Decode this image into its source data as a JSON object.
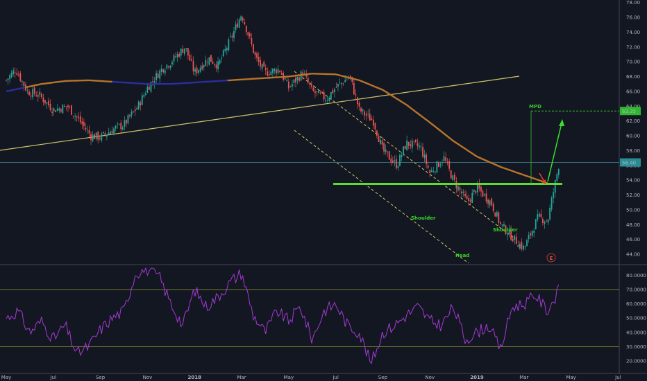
{
  "chart_data": [
    {
      "type": "candlestick",
      "ylim": [
        43,
        78
      ],
      "y_ticks": [
        "44.00",
        "46.00",
        "48.00",
        "50.00",
        "52.00",
        "54.00",
        "56.00",
        "58.00",
        "60.00",
        "62.00",
        "64.00",
        "66.00",
        "68.00",
        "70.00",
        "72.00",
        "74.00",
        "76.00",
        "78.00"
      ],
      "x_ticks": [
        "May",
        "Jul",
        "Sep",
        "Nov",
        "2018",
        "Mar",
        "May",
        "Jul",
        "Sep",
        "Nov",
        "2019",
        "Mar",
        "May",
        "Jul"
      ],
      "x_bold_ticks": [
        "2018",
        "2019"
      ],
      "series": [
        {
          "kind": "close_anchors",
          "t": [
            0,
            0.4,
            0.9,
            1.4,
            2,
            2.6,
            3,
            3.6,
            4,
            4.6,
            5,
            5.6,
            6,
            6.6,
            7,
            7.6,
            8,
            8.6,
            9,
            9.6,
            10,
            10.6,
            11,
            11.6,
            12,
            12.6,
            13,
            13.6,
            14,
            14.6,
            15,
            15.6,
            16,
            16.6,
            17,
            17.6,
            18,
            18.6,
            19,
            19.6,
            20,
            20.6,
            21,
            21.6,
            22,
            22.6,
            23,
            23.5
          ],
          "y": [
            67.5,
            69,
            66,
            65.5,
            63.5,
            64,
            62.5,
            60,
            59.8,
            61,
            61.5,
            64,
            66.5,
            69,
            70,
            72,
            68.5,
            70.5,
            69.5,
            73.5,
            76.5,
            70.5,
            68.5,
            69,
            66.5,
            68.5,
            66,
            65,
            66.5,
            68,
            63.5,
            62,
            58,
            56,
            59,
            58.5,
            55,
            57,
            54,
            51,
            53,
            51,
            48,
            46,
            44.8,
            49,
            48.5,
            56.4
          ]
        },
        {
          "kind": "moving_average",
          "t": [
            0,
            1.5,
            2.5,
            3.5,
            4.5,
            6,
            7,
            8,
            9,
            10,
            11,
            12,
            13,
            14,
            15,
            16,
            17,
            18,
            19,
            20,
            21,
            22,
            23
          ],
          "y": [
            66,
            67,
            67.4,
            67.5,
            67.3,
            67,
            67,
            67.2,
            67.4,
            67.6,
            67.8,
            68,
            68.4,
            68.3,
            67.5,
            66.2,
            64.2,
            61.8,
            59.3,
            57.2,
            55.8,
            54.7,
            53.6
          ]
        }
      ],
      "annotations": {
        "last_price": "56.40",
        "target_price": "63.35",
        "target_label": "MPD",
        "labels": [
          "Shoulder",
          "Head",
          "Shoulder"
        ],
        "event_marker": "E"
      },
      "levels": {
        "neckline": 53.5,
        "target": 63.35,
        "last": 56.4
      }
    },
    {
      "type": "line",
      "ylim": [
        15,
        86
      ],
      "y_ticks": [
        "20.0000",
        "30.0000",
        "40.0000",
        "50.0000",
        "60.0000",
        "70.0000",
        "80.0000"
      ],
      "bands": [
        30,
        70
      ],
      "series": [
        {
          "kind": "rsi",
          "t": [
            0,
            0.5,
            1,
            1.5,
            2,
            2.5,
            3,
            3.5,
            4,
            4.5,
            5,
            5.5,
            6,
            6.5,
            7,
            7.5,
            8,
            8.5,
            9,
            9.5,
            10,
            10.5,
            11,
            11.5,
            12,
            12.5,
            13,
            13.5,
            14,
            14.5,
            15,
            15.5,
            16,
            16.5,
            17,
            17.5,
            18,
            18.5,
            19,
            19.5,
            20,
            20.5,
            21,
            21.5,
            22,
            22.5,
            23,
            23.5
          ],
          "y": [
            50,
            55,
            40,
            48,
            35,
            45,
            25,
            30,
            42,
            50,
            55,
            82,
            84,
            79,
            60,
            45,
            70,
            58,
            65,
            75,
            82,
            52,
            40,
            55,
            48,
            58,
            35,
            55,
            60,
            45,
            40,
            18,
            40,
            45,
            52,
            58,
            48,
            45,
            58,
            35,
            40,
            45,
            28,
            58,
            60,
            66,
            55,
            70
          ]
        }
      ]
    }
  ]
}
